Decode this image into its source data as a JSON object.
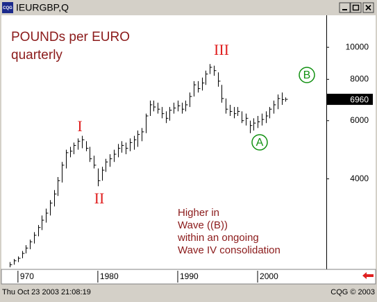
{
  "window": {
    "title": "IEURGBP,Q",
    "icon": "CQG"
  },
  "status": {
    "datetime": "Thu Oct 23 2003 21:08:19",
    "copyright": "CQG © 2003"
  },
  "chart_data": {
    "type": "ohlc",
    "title": "POUNDs per EURO",
    "subtitle": "quarterly",
    "annotations": {
      "wave_1": "I",
      "wave_2": "II",
      "wave_3": "III",
      "wave_a": "A",
      "wave_b": "B",
      "comment": [
        "Higher in",
        "Wave ((B))",
        "within an ongoing",
        "Wave IV consolidation"
      ]
    },
    "log_scale": true,
    "color": "#000000",
    "x": [
      1969.0,
      1969.5,
      1970.0,
      1970.5,
      1971.0,
      1971.5,
      1972.0,
      1972.5,
      1973.0,
      1973.5,
      1974.0,
      1974.5,
      1975.0,
      1975.5,
      1976.0,
      1976.5,
      1977.0,
      1977.5,
      1978.0,
      1978.5,
      1979.0,
      1979.5,
      1980.0,
      1980.5,
      1981.0,
      1981.5,
      1982.0,
      1982.5,
      1983.0,
      1983.5,
      1984.0,
      1984.5,
      1985.0,
      1985.5,
      1986.0,
      1986.5,
      1987.0,
      1987.5,
      1988.0,
      1988.5,
      1989.0,
      1989.5,
      1990.0,
      1990.5,
      1991.0,
      1991.5,
      1992.0,
      1992.5,
      1993.0,
      1993.5,
      1994.0,
      1994.5,
      1995.0,
      1995.5,
      1996.0,
      1996.5,
      1997.0,
      1997.5,
      1998.0,
      1998.5,
      1999.0,
      1999.5,
      2000.0,
      2000.5,
      2001.0,
      2001.5,
      2002.0,
      2002.5,
      2003.0,
      2003.5
    ],
    "high": [
      2240,
      2290,
      2330,
      2420,
      2520,
      2620,
      2760,
      2900,
      3100,
      3250,
      3450,
      3700,
      4050,
      4500,
      4900,
      5000,
      5150,
      5300,
      5400,
      5200,
      5000,
      4700,
      4300,
      4350,
      4600,
      4750,
      4900,
      5100,
      5200,
      5150,
      5300,
      5400,
      5600,
      5700,
      6300,
      6900,
      6900,
      6800,
      6600,
      6400,
      6600,
      6800,
      6900,
      6800,
      6900,
      7300,
      7900,
      7900,
      8100,
      8500,
      8900,
      8800,
      8400,
      7700,
      7000,
      6700,
      6600,
      6600,
      6400,
      6300,
      6000,
      6100,
      6200,
      6300,
      6400,
      6600,
      6900,
      7200,
      7300,
      7050
    ],
    "low": [
      2160,
      2200,
      2240,
      2300,
      2380,
      2450,
      2550,
      2680,
      2800,
      2950,
      3100,
      3300,
      3550,
      3900,
      4300,
      4650,
      4750,
      4900,
      4950,
      4850,
      4500,
      4300,
      3800,
      3950,
      4200,
      4350,
      4500,
      4650,
      4800,
      4750,
      4850,
      4900,
      5000,
      5200,
      5500,
      6200,
      6400,
      6300,
      6100,
      5900,
      6000,
      6300,
      6400,
      6300,
      6400,
      6600,
      7100,
      7300,
      7400,
      7700,
      8300,
      8200,
      7600,
      6800,
      6300,
      6200,
      6100,
      6200,
      5900,
      5800,
      5500,
      5600,
      5700,
      5800,
      5900,
      6100,
      6300,
      6500,
      6700,
      6850
    ],
    "close": [
      2200,
      2260,
      2300,
      2380,
      2470,
      2580,
      2700,
      2850,
      3000,
      3150,
      3380,
      3600,
      3950,
      4400,
      4800,
      4850,
      5050,
      5200,
      5250,
      4950,
      4600,
      4400,
      3950,
      4250,
      4500,
      4600,
      4750,
      4950,
      5050,
      4950,
      5150,
      5250,
      5450,
      5550,
      6200,
      6700,
      6600,
      6500,
      6300,
      6100,
      6450,
      6550,
      6650,
      6500,
      6700,
      7100,
      7700,
      7500,
      7800,
      8300,
      8700,
      8500,
      7900,
      7000,
      6500,
      6400,
      6300,
      6400,
      6000,
      6100,
      5800,
      5900,
      5950,
      6050,
      6200,
      6500,
      6700,
      7000,
      6950,
      6960
    ],
    "xlim": [
      1968.1,
      2008.6
    ],
    "xticks": [
      {
        "value": 1970,
        "label": "970"
      },
      1980,
      1990,
      2000
    ],
    "ylim": [
      2150,
      12500
    ],
    "yticks": [
      4000,
      6000,
      8000,
      10000
    ]
  }
}
